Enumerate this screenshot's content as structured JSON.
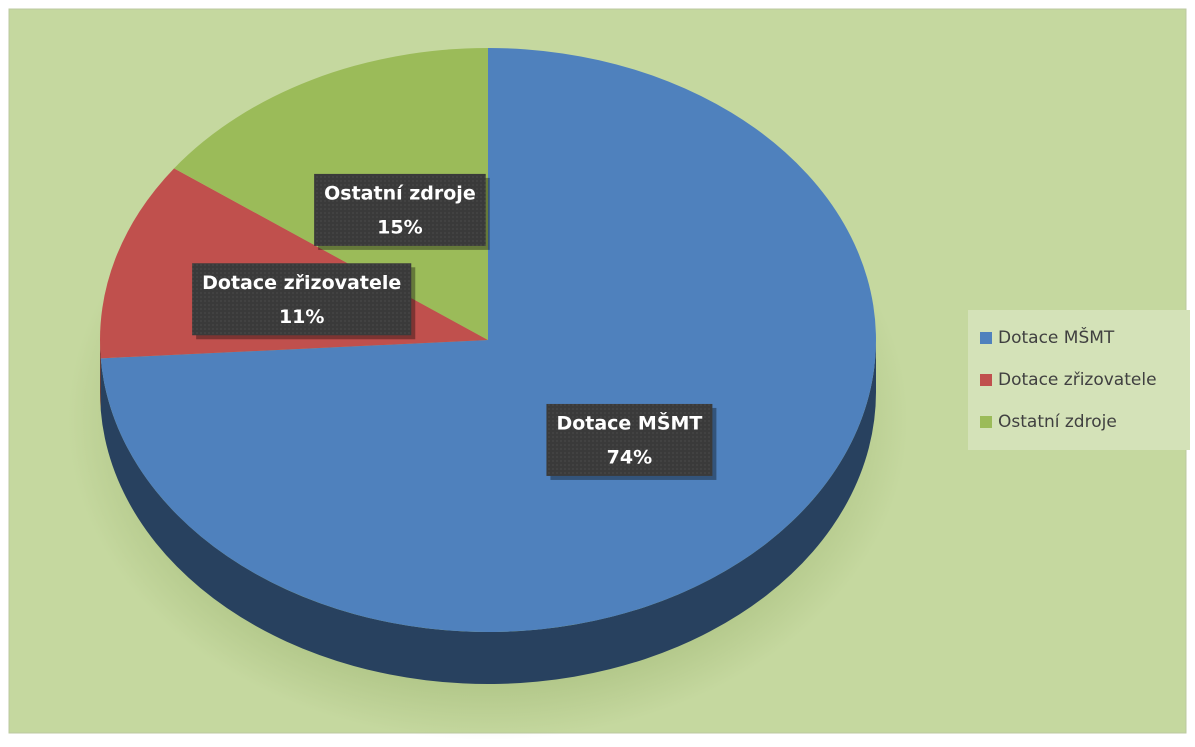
{
  "chart_data": {
    "type": "pie",
    "categories": [
      "Dotace MŠMT",
      "Dotace zřizovatele",
      "Ostatní zdroje"
    ],
    "values": [
      74,
      11,
      15
    ],
    "value_labels": [
      "74%",
      "11%",
      "15%"
    ],
    "colors": [
      "#4f81bd",
      "#c0504d",
      "#9bbb59"
    ],
    "legend": "right"
  }
}
